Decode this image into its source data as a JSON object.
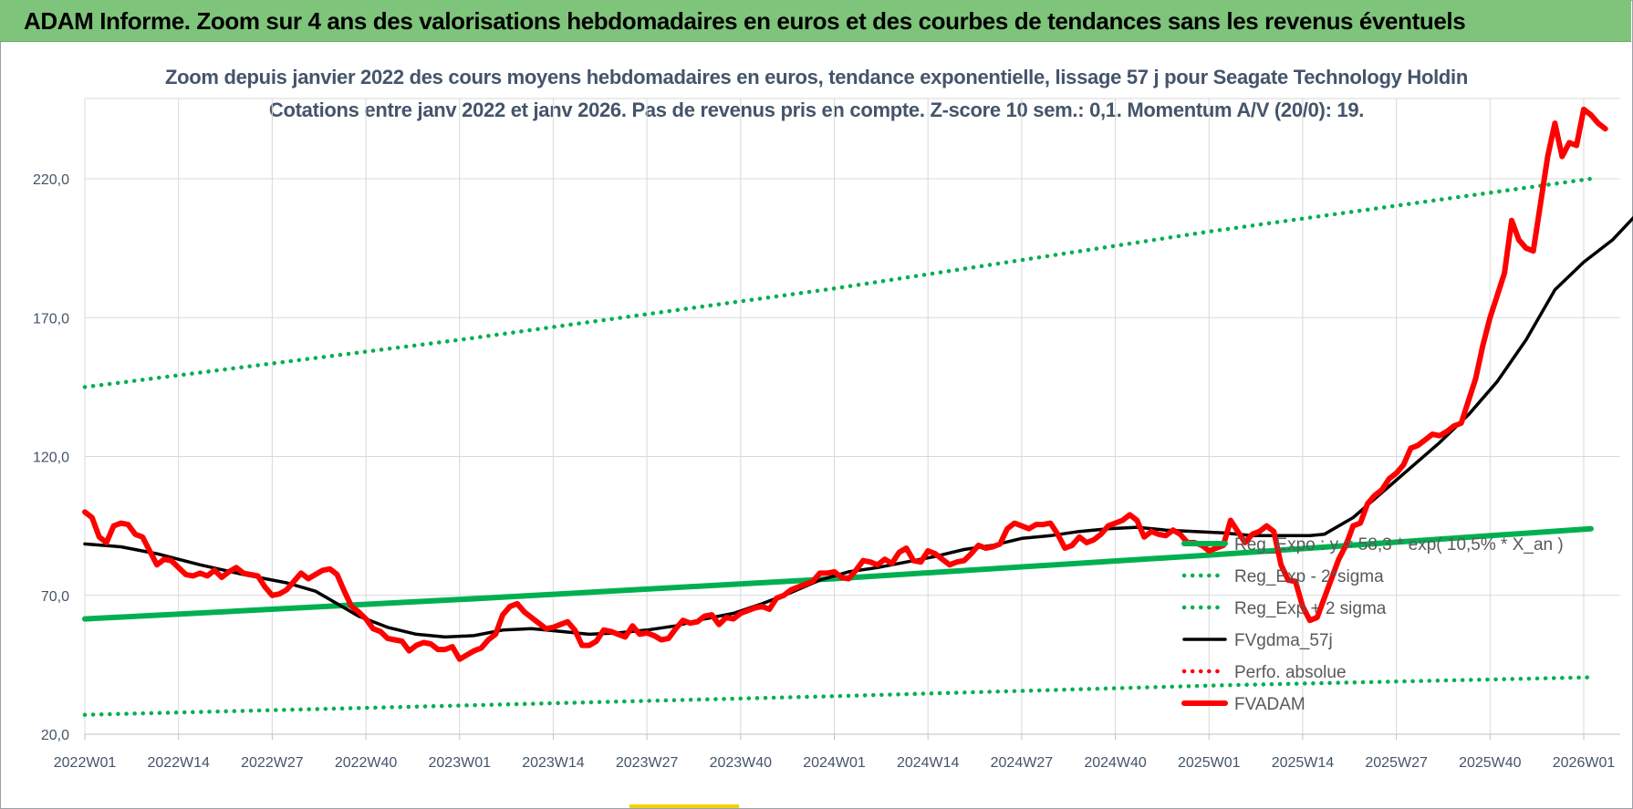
{
  "banner": {
    "title": "ADAM Informe. Zoom sur 4 ans des valorisations hebdomadaires en euros et des courbes de tendances sans les revenus éventuels"
  },
  "chart_data": {
    "type": "line",
    "title": "Zoom depuis janvier 2022 des cours moyens hebdomadaires en euros, tendance exponentielle, lissage 57 j pour Seagate Technology Holdin",
    "subtitle": "Cotations entre janv 2022 et janv 2026. Pas de revenus pris en compte. Z-score 10 sem.: 0,1. Momentum A/V (20/0): 19.",
    "xlabel": "",
    "ylabel": "",
    "ylim": [
      20,
      250
    ],
    "y_ticks": [
      "20,0",
      "70,0",
      "120,0",
      "170,0",
      "220,0"
    ],
    "x_ticks": [
      "2022W01",
      "2022W14",
      "2022W27",
      "2022W40",
      "2023W01",
      "2023W14",
      "2023W27",
      "2023W40",
      "2024W01",
      "2024W14",
      "2024W27",
      "2024W40",
      "2025W01",
      "2025W14",
      "2025W27",
      "2025W40",
      "2026W01"
    ],
    "grid": true,
    "legend_position": "bottom-right",
    "series": [
      {
        "name": "Reg_Expo : y = 58,3 * exp( 10,5% * X_an )",
        "color": "#00b050",
        "style": "thick",
        "points": [
          [
            0,
            61.5
          ],
          [
            52,
            68.5
          ],
          [
            104,
            76.0
          ],
          [
            156,
            84.5
          ],
          [
            209,
            94.0
          ]
        ]
      },
      {
        "name": "Reg_Exp - 2*sigma",
        "color": "#00b050",
        "style": "dotted",
        "points": [
          [
            0,
            27.0
          ],
          [
            52,
            30.3
          ],
          [
            104,
            33.7
          ],
          [
            156,
            37.5
          ],
          [
            209,
            40.5
          ]
        ]
      },
      {
        "name": "Reg_Exp + 2 sigma",
        "color": "#00b050",
        "style": "dotted",
        "points": [
          [
            0,
            145.0
          ],
          [
            52,
            162.0
          ],
          [
            104,
            180.5
          ],
          [
            156,
            201.0
          ],
          [
            209,
            220.0
          ]
        ]
      },
      {
        "name": "FVgdma_57j",
        "color": "#000000",
        "style": "solid",
        "points": [
          [
            0,
            88.5
          ],
          [
            5,
            87.5
          ],
          [
            10,
            85.0
          ],
          [
            16,
            81.0
          ],
          [
            22,
            77.5
          ],
          [
            28,
            74.5
          ],
          [
            32,
            71.5
          ],
          [
            35,
            67.0
          ],
          [
            38,
            62.5
          ],
          [
            42,
            58.5
          ],
          [
            46,
            56.0
          ],
          [
            50,
            55.0
          ],
          [
            54,
            55.5
          ],
          [
            58,
            57.5
          ],
          [
            62,
            58.0
          ],
          [
            66,
            57.0
          ],
          [
            70,
            56.0
          ],
          [
            74,
            56.5
          ],
          [
            78,
            57.5
          ],
          [
            82,
            59.0
          ],
          [
            86,
            61.5
          ],
          [
            90,
            63.5
          ],
          [
            94,
            67.0
          ],
          [
            98,
            71.0
          ],
          [
            102,
            75.5
          ],
          [
            106,
            78.5
          ],
          [
            110,
            80.0
          ],
          [
            114,
            82.0
          ],
          [
            118,
            84.0
          ],
          [
            122,
            86.5
          ],
          [
            126,
            88.0
          ],
          [
            130,
            90.5
          ],
          [
            134,
            91.5
          ],
          [
            138,
            93.0
          ],
          [
            142,
            94.0
          ],
          [
            146,
            94.5
          ],
          [
            150,
            93.5
          ],
          [
            154,
            93.0
          ],
          [
            158,
            92.5
          ],
          [
            162,
            91.5
          ],
          [
            166,
            91.5
          ],
          [
            170,
            91.5
          ],
          [
            172,
            92.0
          ],
          [
            176,
            98.0
          ],
          [
            180,
            107.0
          ],
          [
            184,
            116.0
          ],
          [
            188,
            125.0
          ],
          [
            192,
            135.0
          ],
          [
            196,
            147.0
          ],
          [
            200,
            162.0
          ],
          [
            204,
            180.0
          ],
          [
            208,
            190.0
          ],
          [
            212,
            198.0
          ],
          [
            216,
            209.0
          ],
          [
            220,
            218.0
          ],
          [
            224,
            226.0
          ]
        ]
      },
      {
        "name": "Perfo. absolue",
        "color": "#ff0000",
        "style": "dotted",
        "points": []
      },
      {
        "name": "FVADAM",
        "color": "#ff0000",
        "style": "thick",
        "points": [
          [
            0,
            100.0
          ],
          [
            1,
            98.0
          ],
          [
            2,
            91.0
          ],
          [
            3,
            89.0
          ],
          [
            4,
            95.0
          ],
          [
            5,
            96.0
          ],
          [
            6,
            95.5
          ],
          [
            7,
            92.0
          ],
          [
            8,
            91.0
          ],
          [
            9,
            86.0
          ],
          [
            10,
            81.0
          ],
          [
            11,
            83.0
          ],
          [
            12,
            82.5
          ],
          [
            13,
            80.0
          ],
          [
            14,
            77.5
          ],
          [
            15,
            77.0
          ],
          [
            16,
            78.0
          ],
          [
            17,
            77.0
          ],
          [
            18,
            79.0
          ],
          [
            19,
            76.5
          ],
          [
            20,
            78.5
          ],
          [
            21,
            80.0
          ],
          [
            22,
            78.0
          ],
          [
            23,
            77.5
          ],
          [
            24,
            77.0
          ],
          [
            25,
            73.0
          ],
          [
            26,
            70.0
          ],
          [
            27,
            70.5
          ],
          [
            28,
            72.0
          ],
          [
            29,
            75.0
          ],
          [
            30,
            78.0
          ],
          [
            31,
            76.0
          ],
          [
            32,
            77.5
          ],
          [
            33,
            79.0
          ],
          [
            34,
            79.5
          ],
          [
            35,
            77.5
          ],
          [
            36,
            71.5
          ],
          [
            37,
            66.0
          ],
          [
            38,
            64.0
          ],
          [
            39,
            61.5
          ],
          [
            40,
            58.0
          ],
          [
            41,
            57.0
          ],
          [
            42,
            54.5
          ],
          [
            43,
            54.0
          ],
          [
            44,
            53.5
          ],
          [
            45,
            50.0
          ],
          [
            46,
            52.0
          ],
          [
            47,
            53.0
          ],
          [
            48,
            52.5
          ],
          [
            49,
            50.5
          ],
          [
            50,
            50.5
          ],
          [
            51,
            51.5
          ],
          [
            52,
            47.0
          ],
          [
            53,
            48.5
          ],
          [
            54,
            50.0
          ],
          [
            55,
            51.0
          ],
          [
            56,
            54.0
          ],
          [
            57,
            56.0
          ],
          [
            58,
            63.0
          ],
          [
            59,
            66.0
          ],
          [
            60,
            67.0
          ],
          [
            61,
            64.0
          ],
          [
            62,
            62.0
          ],
          [
            63,
            60.0
          ],
          [
            64,
            58.0
          ],
          [
            65,
            58.5
          ],
          [
            66,
            59.5
          ],
          [
            67,
            60.5
          ],
          [
            68,
            57.5
          ],
          [
            69,
            52.0
          ],
          [
            70,
            52.0
          ],
          [
            71,
            53.5
          ],
          [
            72,
            57.5
          ],
          [
            73,
            57.0
          ],
          [
            74,
            56.0
          ],
          [
            75,
            55.0
          ],
          [
            76,
            59.0
          ],
          [
            77,
            56.0
          ],
          [
            78,
            56.5
          ],
          [
            79,
            55.5
          ],
          [
            80,
            54.0
          ],
          [
            81,
            54.5
          ],
          [
            82,
            58.0
          ],
          [
            83,
            61.0
          ],
          [
            84,
            60.0
          ],
          [
            85,
            60.5
          ],
          [
            86,
            62.5
          ],
          [
            87,
            63.0
          ],
          [
            88,
            59.5
          ],
          [
            89,
            62.0
          ],
          [
            90,
            61.5
          ],
          [
            91,
            63.5
          ],
          [
            92,
            64.5
          ],
          [
            93,
            65.5
          ],
          [
            94,
            66.0
          ],
          [
            95,
            65.0
          ],
          [
            96,
            69.0
          ],
          [
            97,
            70.0
          ],
          [
            98,
            72.0
          ],
          [
            99,
            73.0
          ],
          [
            100,
            74.0
          ],
          [
            101,
            75.0
          ],
          [
            102,
            78.0
          ],
          [
            103,
            78.0
          ],
          [
            104,
            78.5
          ],
          [
            105,
            76.5
          ],
          [
            106,
            76.0
          ],
          [
            107,
            79.0
          ],
          [
            108,
            82.5
          ],
          [
            109,
            82.0
          ],
          [
            110,
            81.0
          ],
          [
            111,
            83.0
          ],
          [
            112,
            81.5
          ],
          [
            113,
            85.5
          ],
          [
            114,
            87.0
          ],
          [
            115,
            82.5
          ],
          [
            116,
            82.0
          ],
          [
            117,
            86.0
          ],
          [
            118,
            85.0
          ],
          [
            119,
            83.0
          ],
          [
            120,
            81.0
          ],
          [
            121,
            82.0
          ],
          [
            122,
            82.5
          ],
          [
            123,
            85.0
          ],
          [
            124,
            88.0
          ],
          [
            125,
            87.0
          ],
          [
            126,
            87.5
          ],
          [
            127,
            88.5
          ],
          [
            128,
            94.0
          ],
          [
            129,
            96.0
          ],
          [
            130,
            95.0
          ],
          [
            131,
            94.0
          ],
          [
            132,
            95.5
          ],
          [
            133,
            95.5
          ],
          [
            134,
            96.0
          ],
          [
            135,
            92.0
          ],
          [
            136,
            87.0
          ],
          [
            137,
            88.0
          ],
          [
            138,
            91.0
          ],
          [
            139,
            89.0
          ],
          [
            140,
            90.0
          ],
          [
            141,
            92.0
          ],
          [
            142,
            95.0
          ],
          [
            143,
            96.0
          ],
          [
            144,
            97.0
          ],
          [
            145,
            99.0
          ],
          [
            146,
            97.0
          ],
          [
            147,
            91.0
          ],
          [
            148,
            93.0
          ],
          [
            149,
            92.0
          ],
          [
            150,
            91.5
          ],
          [
            151,
            93.5
          ],
          [
            152,
            92.0
          ],
          [
            153,
            89.0
          ],
          [
            154,
            89.0
          ],
          [
            155,
            88.0
          ],
          [
            156,
            86.0
          ],
          [
            157,
            87.0
          ],
          [
            158,
            88.0
          ],
          [
            159,
            97.0
          ],
          [
            160,
            93.0
          ],
          [
            161,
            89.0
          ],
          [
            162,
            92.0
          ],
          [
            163,
            93.0
          ],
          [
            164,
            95.0
          ],
          [
            165,
            93.0
          ],
          [
            166,
            81.0
          ],
          [
            167,
            75.5
          ],
          [
            168,
            75.0
          ],
          [
            169,
            66.0
          ],
          [
            170,
            61.0
          ],
          [
            171,
            62.0
          ],
          [
            172,
            69.0
          ],
          [
            173,
            76.0
          ],
          [
            174,
            83.0
          ],
          [
            175,
            88.0
          ],
          [
            176,
            95.0
          ],
          [
            177,
            96.0
          ],
          [
            178,
            103.0
          ],
          [
            179,
            106.0
          ],
          [
            180,
            108.0
          ],
          [
            181,
            112.0
          ],
          [
            182,
            114.0
          ],
          [
            183,
            117.0
          ],
          [
            184,
            123.0
          ],
          [
            185,
            124.0
          ],
          [
            186,
            126.0
          ],
          [
            187,
            128.0
          ],
          [
            188,
            127.5
          ],
          [
            189,
            129.0
          ],
          [
            190,
            131.0
          ],
          [
            191,
            132.0
          ],
          [
            192,
            140.0
          ],
          [
            193,
            148.0
          ],
          [
            194,
            160.0
          ],
          [
            195,
            170.0
          ],
          [
            196,
            178.0
          ],
          [
            197,
            186.0
          ],
          [
            198,
            205.0
          ],
          [
            199,
            198.0
          ],
          [
            200,
            195.0
          ],
          [
            201,
            194.0
          ],
          [
            202,
            211.0
          ],
          [
            203,
            228.0
          ],
          [
            204,
            240.0
          ],
          [
            205,
            228.0
          ],
          [
            206,
            233.0
          ],
          [
            207,
            232.0
          ],
          [
            208,
            245.0
          ],
          [
            209,
            243.0
          ],
          [
            210,
            240.0
          ],
          [
            211,
            238.0
          ]
        ]
      }
    ]
  }
}
